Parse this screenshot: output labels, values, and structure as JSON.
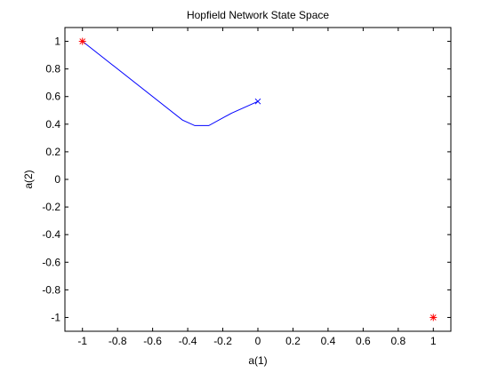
{
  "chart_data": {
    "type": "line",
    "title": "Hopfield Network State Space",
    "xlabel": "a(1)",
    "ylabel": "a(2)",
    "xlim": [
      -1.1,
      1.1
    ],
    "ylim": [
      -1.1,
      1.1
    ],
    "xticks": [
      -1,
      -0.8,
      -0.6,
      -0.4,
      -0.2,
      0,
      0.2,
      0.4,
      0.6,
      0.8,
      1
    ],
    "yticks": [
      -1,
      -0.8,
      -0.6,
      -0.4,
      -0.2,
      0,
      0.2,
      0.4,
      0.6,
      0.8,
      1
    ],
    "xtick_labels": [
      "-1",
      "-0.8",
      "-0.6",
      "-0.4",
      "-0.2",
      "0",
      "0.2",
      "0.4",
      "0.6",
      "0.8",
      "1"
    ],
    "ytick_labels": [
      "-1",
      "-0.8",
      "-0.6",
      "-0.4",
      "-0.2",
      "0",
      "0.2",
      "0.4",
      "0.6",
      "0.8",
      "1"
    ],
    "grid": false,
    "series": [
      {
        "kind": "trajectory",
        "color": "#0000ff",
        "x": [
          0.0,
          -0.15,
          -0.28,
          -0.36,
          -0.43,
          -1.0
        ],
        "y": [
          0.565,
          0.48,
          0.39,
          0.39,
          0.43,
          1.0
        ]
      },
      {
        "kind": "start-marker",
        "marker": "x",
        "color": "#0000ff",
        "x": [
          0.0
        ],
        "y": [
          0.565
        ]
      },
      {
        "kind": "stored-patterns",
        "marker": "*",
        "color": "#ff0000",
        "x": [
          -1,
          1
        ],
        "y": [
          1,
          -1
        ]
      }
    ]
  }
}
